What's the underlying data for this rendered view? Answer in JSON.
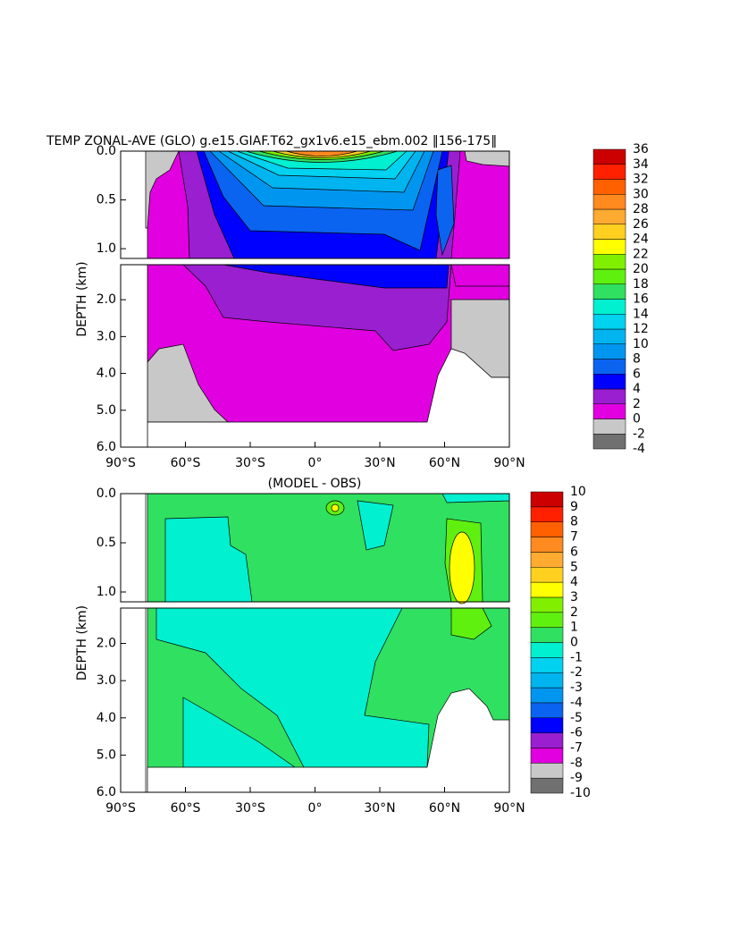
{
  "chart_data": [
    {
      "type": "contour",
      "title": "TEMP ZONAL-AVE (GLO) g.e15.GIAF.T62_gx1v6.e15_ebm.002 ‖156-175‖",
      "ylabel": "DEPTH (km)",
      "xlim": [
        -90,
        90
      ],
      "xticks": [
        {
          "value": -90,
          "label": "90°S"
        },
        {
          "value": -60,
          "label": "60°S"
        },
        {
          "value": -30,
          "label": "30°S"
        },
        {
          "value": 0,
          "label": "0°"
        },
        {
          "value": 30,
          "label": "30°N"
        },
        {
          "value": 60,
          "label": "60°N"
        },
        {
          "value": 90,
          "label": "90°N"
        }
      ],
      "ylim": [
        0,
        6
      ],
      "yticks": [
        {
          "value": 0,
          "label": "0.0"
        },
        {
          "value": 0.5,
          "label": "0.5"
        },
        {
          "value": 1,
          "label": "1.0"
        },
        {
          "value": 2,
          "label": "2.0"
        },
        {
          "value": 3,
          "label": "3.0"
        },
        {
          "value": 4,
          "label": "4.0"
        },
        {
          "value": 5,
          "label": "5.0"
        },
        {
          "value": 6,
          "label": "6.0"
        }
      ],
      "colorbar": {
        "levels": [
          -4,
          -2,
          0,
          2,
          4,
          6,
          8,
          10,
          12,
          14,
          16,
          18,
          20,
          22,
          24,
          26,
          28,
          30,
          32,
          34,
          36
        ],
        "colors": [
          "#707070",
          "#c8c8c8",
          "#e000e0",
          "#9a1fd0",
          "#0000ff",
          "#0a64f0",
          "#0096f0",
          "#00b4f0",
          "#00d2f0",
          "#00f0d0",
          "#30e060",
          "#60f010",
          "#80f000",
          "#ffff00",
          "#ffd020",
          "#ffaa30",
          "#ff8a20",
          "#ff6000",
          "#ff2000",
          "#cc0000"
        ]
      }
    },
    {
      "type": "contour",
      "title": "(MODEL - OBS)",
      "ylabel": "DEPTH (km)",
      "xlim": [
        -90,
        90
      ],
      "xticks": [
        {
          "value": -90,
          "label": "90°S"
        },
        {
          "value": -60,
          "label": "60°S"
        },
        {
          "value": -30,
          "label": "30°S"
        },
        {
          "value": 0,
          "label": "0°"
        },
        {
          "value": 30,
          "label": "30°N"
        },
        {
          "value": 60,
          "label": "60°N"
        },
        {
          "value": 90,
          "label": "90°N"
        }
      ],
      "ylim": [
        0,
        6
      ],
      "yticks": [
        {
          "value": 0,
          "label": "0.0"
        },
        {
          "value": 0.5,
          "label": "0.5"
        },
        {
          "value": 1,
          "label": "1.0"
        },
        {
          "value": 2,
          "label": "2.0"
        },
        {
          "value": 3,
          "label": "3.0"
        },
        {
          "value": 4,
          "label": "4.0"
        },
        {
          "value": 5,
          "label": "5.0"
        },
        {
          "value": 6,
          "label": "6.0"
        }
      ],
      "colorbar": {
        "levels": [
          -10,
          -9,
          -8,
          -7,
          -6,
          -5,
          -4,
          -3,
          -2,
          -1,
          0,
          1,
          2,
          3,
          4,
          5,
          6,
          7,
          8,
          9,
          10
        ],
        "colors": [
          "#707070",
          "#c8c8c8",
          "#e000e0",
          "#9a1fd0",
          "#0000ff",
          "#0a64f0",
          "#0096f0",
          "#00b4f0",
          "#00d2f0",
          "#00f0d0",
          "#30e060",
          "#60f010",
          "#80f000",
          "#ffff00",
          "#ffd020",
          "#ffaa30",
          "#ff8a20",
          "#ff6000",
          "#ff2000",
          "#cc0000"
        ]
      }
    }
  ]
}
